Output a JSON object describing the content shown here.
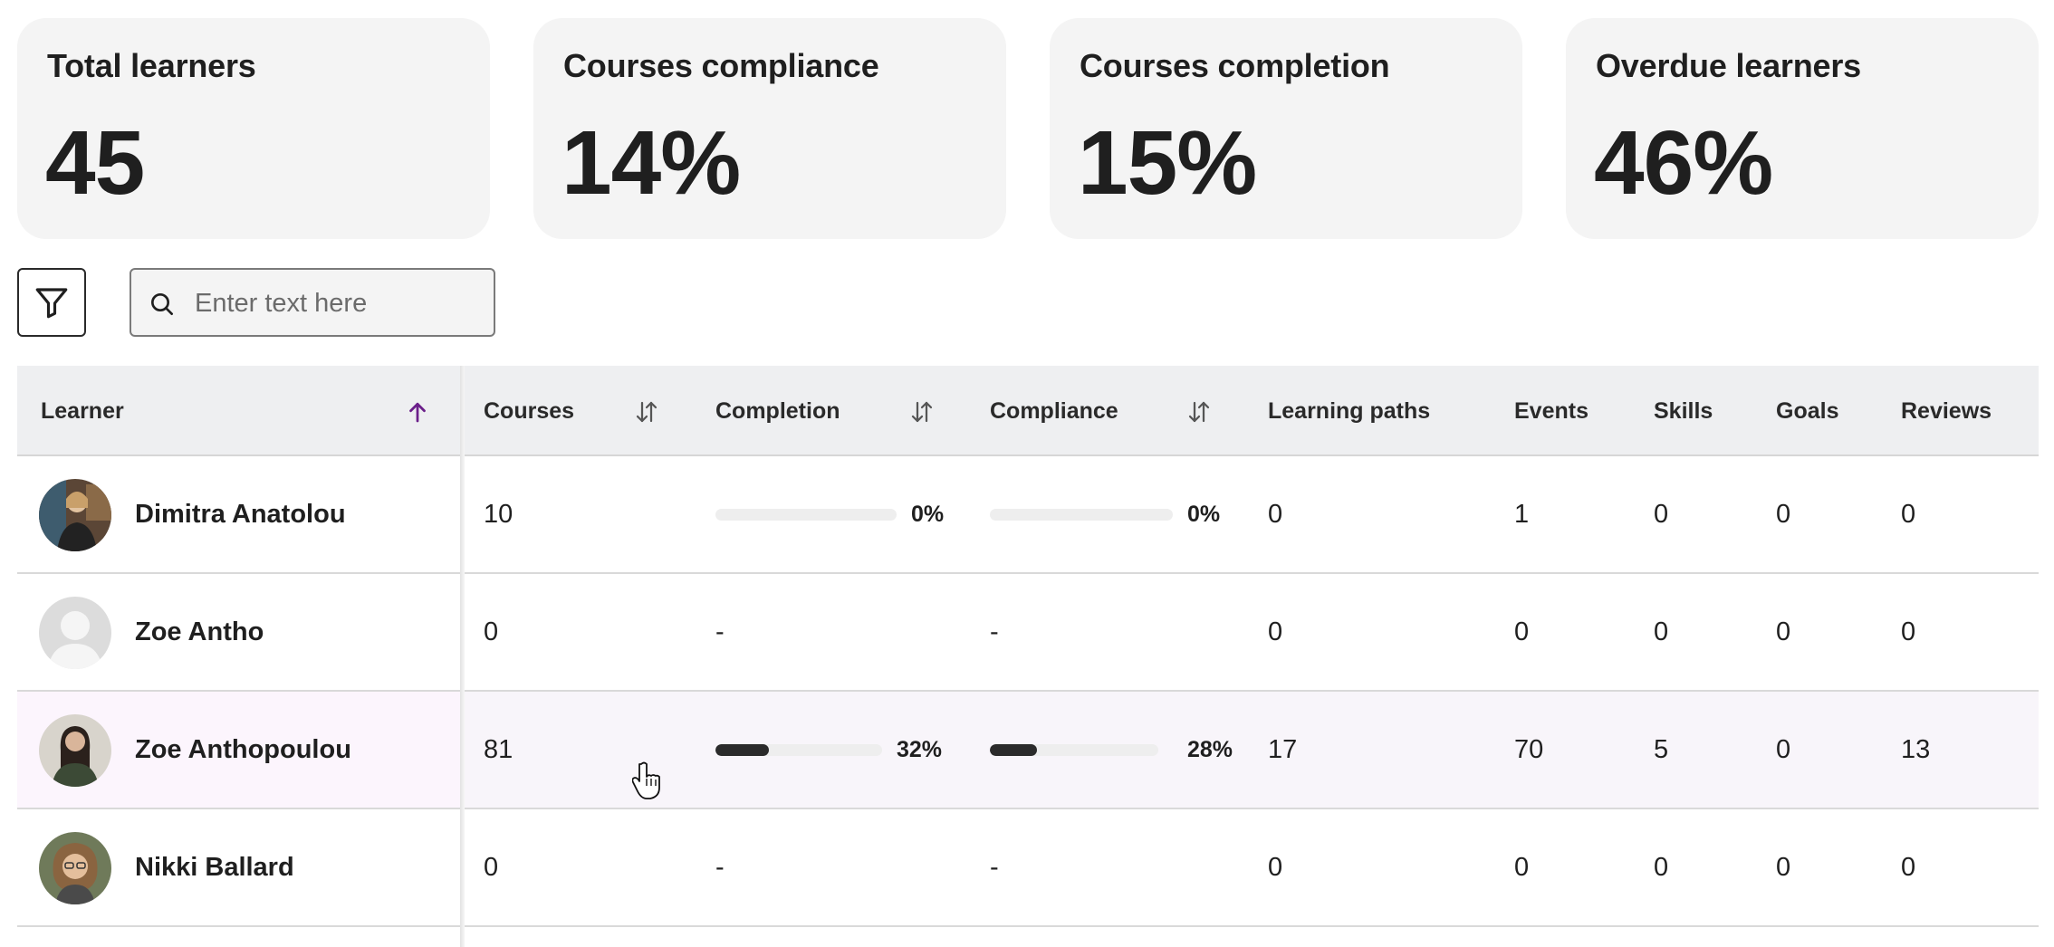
{
  "stats": [
    {
      "title": "Total learners",
      "value": "45"
    },
    {
      "title": "Courses compliance",
      "value": "14%"
    },
    {
      "title": "Courses completion",
      "value": "15%"
    },
    {
      "title": "Overdue learners",
      "value": "46%"
    }
  ],
  "toolbar": {
    "filter_icon": "filter-icon",
    "search_placeholder": "Enter text here",
    "search_value": ""
  },
  "table": {
    "columns": {
      "learner": "Learner",
      "courses": "Courses",
      "completion": "Completion",
      "compliance": "Compliance",
      "learning_paths": "Learning paths",
      "events": "Events",
      "skills": "Skills",
      "goals": "Goals",
      "reviews": "Reviews"
    },
    "sorted_column": "learner",
    "sort_direction": "ascending",
    "accent_color": "#6b1f8a",
    "rows": [
      {
        "name": "Dimitra Anatolou",
        "courses": "10",
        "completion": "0%",
        "completion_fraction": 0,
        "compliance": "0%",
        "compliance_fraction": 0,
        "learning_paths": "0",
        "events": "1",
        "skills": "0",
        "goals": "0",
        "reviews": "0"
      },
      {
        "name": "Zoe Antho",
        "courses": "0",
        "completion": "-",
        "compliance": "-",
        "learning_paths": "0",
        "events": "0",
        "skills": "0",
        "goals": "0",
        "reviews": "0"
      },
      {
        "name": "Zoe Anthopoulou",
        "courses": "81",
        "completion": "32%",
        "completion_fraction": 0.32,
        "compliance": "28%",
        "compliance_fraction": 0.28,
        "learning_paths": "17",
        "events": "70",
        "skills": "5",
        "goals": "0",
        "reviews": "13"
      },
      {
        "name": "Nikki Ballard",
        "courses": "0",
        "completion": "-",
        "compliance": "-",
        "learning_paths": "0",
        "events": "0",
        "skills": "0",
        "goals": "0",
        "reviews": "0"
      }
    ]
  }
}
